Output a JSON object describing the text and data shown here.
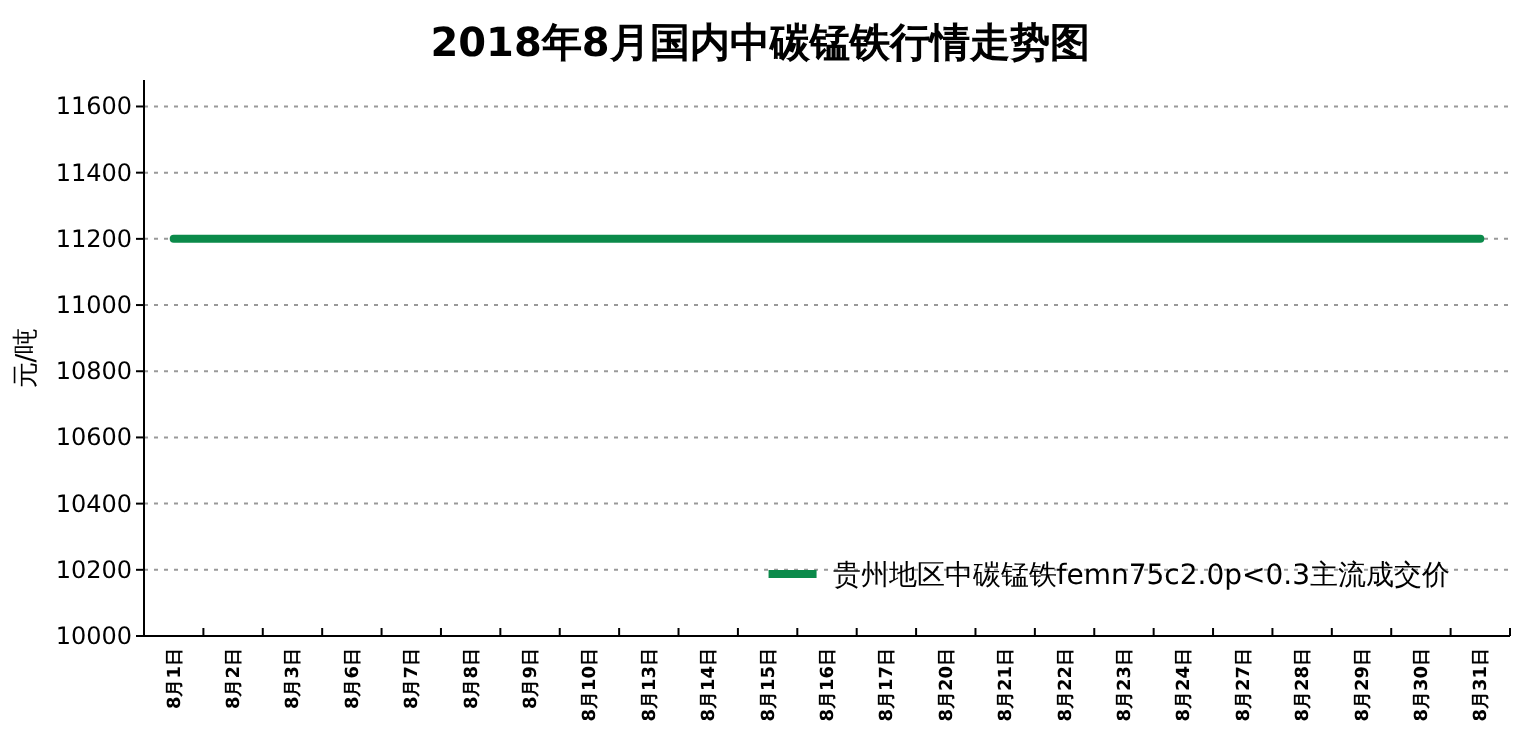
{
  "chart_data": {
    "type": "line",
    "title": "2018年8月国内中碳锰铁行情走势图",
    "ylabel": "元/吨",
    "categories": [
      "8月1日",
      "8月2日",
      "8月3日",
      "8月6日",
      "8月7日",
      "8月8日",
      "8月9日",
      "8月10日",
      "8月13日",
      "8月14日",
      "8月15日",
      "8月16日",
      "8月17日",
      "8月20日",
      "8月21日",
      "8月22日",
      "8月23日",
      "8月24日",
      "8月27日",
      "8月28日",
      "8月29日",
      "8月30日",
      "8月31日"
    ],
    "series": [
      {
        "name": "贵州地区中碳锰铁femn75c2.0p<0.3主流成交价",
        "color": "#0b8a4a",
        "values": [
          11200,
          11200,
          11200,
          11200,
          11200,
          11200,
          11200,
          11200,
          11200,
          11200,
          11200,
          11200,
          11200,
          11200,
          11200,
          11200,
          11200,
          11200,
          11200,
          11200,
          11200,
          11200,
          11200
        ]
      }
    ],
    "ylim": [
      10000,
      11680
    ],
    "yticks": [
      10000,
      10200,
      10400,
      10600,
      10800,
      11000,
      11200,
      11400,
      11600
    ],
    "grid": "y",
    "legend": "bottom right",
    "marker": "none",
    "line_style": "solid"
  }
}
